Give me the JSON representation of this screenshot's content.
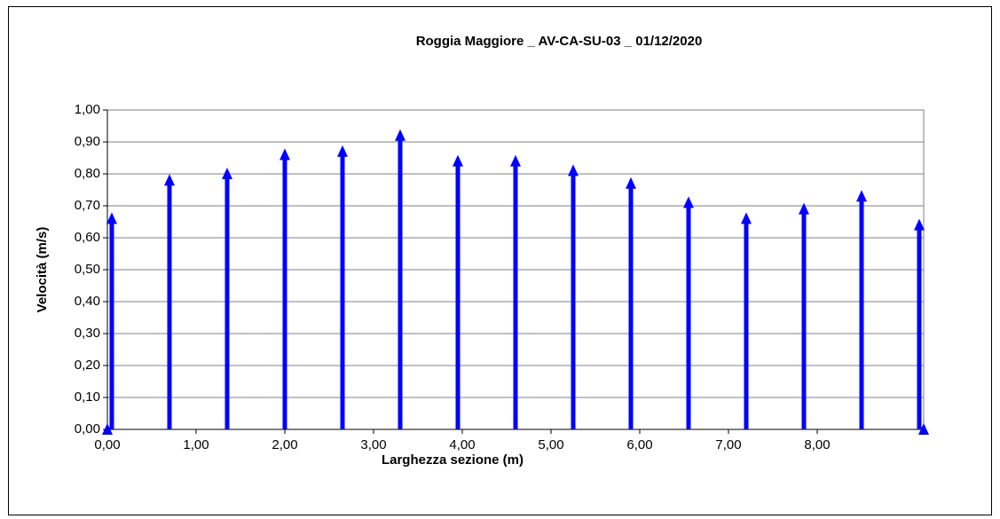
{
  "chart_data": {
    "type": "stem",
    "title": "Roggia Maggiore _ AV-CA-SU-03 _ 01/12/2020",
    "xlabel": "Larghezza sezione (m)",
    "ylabel": "Velocità (m/s)",
    "series": [
      {
        "color": "#0000ff",
        "marker": "arrow",
        "x": [
          0.05,
          0.7,
          1.35,
          2.0,
          2.65,
          3.3,
          3.95,
          4.6,
          5.25,
          5.9,
          6.55,
          7.2,
          7.85,
          8.5,
          9.15
        ],
        "values": [
          0.66,
          0.78,
          0.8,
          0.86,
          0.87,
          0.92,
          0.84,
          0.84,
          0.81,
          0.77,
          0.71,
          0.66,
          0.69,
          0.73,
          0.64
        ]
      },
      {
        "color": "#0000ff",
        "marker": "triangle",
        "x": [
          0,
          9.2
        ],
        "values": [
          0,
          0
        ]
      }
    ],
    "xlim": [
      0,
      9.2
    ],
    "xticks": [
      {
        "value": 0,
        "label": "0,00"
      },
      {
        "value": 1,
        "label": "1,00"
      },
      {
        "value": 2,
        "label": "2,00"
      },
      {
        "value": 3,
        "label": "3,00"
      },
      {
        "value": 4,
        "label": "4,00"
      },
      {
        "value": 5,
        "label": "5,00"
      },
      {
        "value": 6,
        "label": "6,00"
      },
      {
        "value": 7,
        "label": "7,00"
      },
      {
        "value": 8,
        "label": "8,00"
      }
    ],
    "ylim": [
      0,
      1
    ],
    "yticks": [
      {
        "value": 0,
        "label": "0,00"
      },
      {
        "value": 0.1,
        "label": "0,10"
      },
      {
        "value": 0.2,
        "label": "0,20"
      },
      {
        "value": 0.3,
        "label": "0,30"
      },
      {
        "value": 0.4,
        "label": "0,40"
      },
      {
        "value": 0.5,
        "label": "0,50"
      },
      {
        "value": 0.6,
        "label": "0,60"
      },
      {
        "value": 0.7,
        "label": "0,70"
      },
      {
        "value": 0.8,
        "label": "0,80"
      },
      {
        "value": 0.9,
        "label": "0,90"
      },
      {
        "value": 1,
        "label": "1,00"
      }
    ],
    "grid": true
  }
}
